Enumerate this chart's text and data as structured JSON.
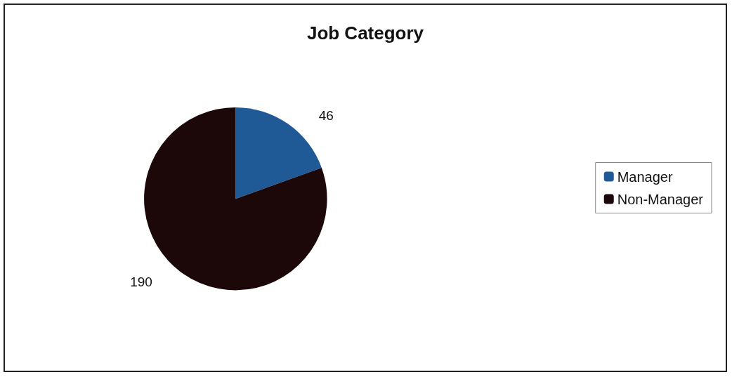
{
  "chart_data": {
    "type": "pie",
    "title": "Job Category",
    "categories": [
      "Manager",
      "Non-Manager"
    ],
    "values": [
      46,
      190
    ],
    "colors": [
      "#1f5a96",
      "#1c0808"
    ],
    "data_labels": true,
    "legend": "right"
  }
}
